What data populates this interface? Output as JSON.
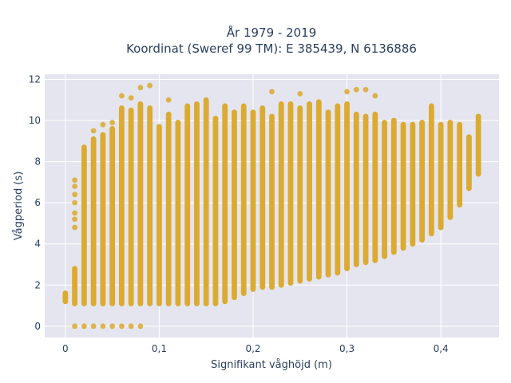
{
  "chart_data": {
    "type": "scatter",
    "title": "År 1979 - 2019",
    "subtitle": "Koordinat (Sweref 99 TM): E 385439, N 6136886",
    "xlabel": "Signifikant våghöjd (m)",
    "ylabel": "Vågperiod (s)",
    "xlim": [
      -0.022,
      0.462
    ],
    "ylim": [
      -0.55,
      12.25
    ],
    "x_ticks": [
      0,
      0.1,
      0.2,
      0.3,
      0.4
    ],
    "x_tick_labels": [
      "0",
      "0,1",
      "0,2",
      "0,3",
      "0,4"
    ],
    "y_ticks": [
      0,
      2,
      4,
      6,
      8,
      10,
      12
    ],
    "y_tick_labels": [
      "0",
      "2",
      "4",
      "6",
      "8",
      "10",
      "12"
    ],
    "grid": true,
    "legend": "none",
    "marker_color": "#DAA520",
    "plot_bg": "#E5E5EF",
    "x_step": 0.01,
    "columns": [
      {
        "x": 0.0,
        "ymin": 1.2,
        "ymax": 1.6,
        "extra": []
      },
      {
        "x": 0.01,
        "ymin": 1.1,
        "ymax": 2.8,
        "extra": [
          0,
          4.8,
          5.2,
          5.5,
          6.0,
          6.4,
          6.8,
          7.1
        ]
      },
      {
        "x": 0.02,
        "ymin": 1.1,
        "ymax": 8.7,
        "extra": [
          0
        ]
      },
      {
        "x": 0.03,
        "ymin": 1.1,
        "ymax": 9.1,
        "extra": [
          0,
          9.5
        ]
      },
      {
        "x": 0.04,
        "ymin": 1.1,
        "ymax": 9.3,
        "extra": [
          0,
          9.8
        ]
      },
      {
        "x": 0.05,
        "ymin": 1.1,
        "ymax": 9.6,
        "extra": [
          0,
          9.9
        ]
      },
      {
        "x": 0.06,
        "ymin": 1.1,
        "ymax": 10.6,
        "extra": [
          0,
          11.2
        ]
      },
      {
        "x": 0.07,
        "ymin": 1.1,
        "ymax": 10.5,
        "extra": [
          0,
          11.1
        ]
      },
      {
        "x": 0.08,
        "ymin": 1.1,
        "ymax": 10.8,
        "extra": [
          0,
          11.6
        ]
      },
      {
        "x": 0.09,
        "ymin": 1.1,
        "ymax": 10.6,
        "extra": [
          11.7
        ]
      },
      {
        "x": 0.1,
        "ymin": 1.1,
        "ymax": 9.7,
        "extra": []
      },
      {
        "x": 0.11,
        "ymin": 1.1,
        "ymax": 10.3,
        "extra": [
          11.0
        ]
      },
      {
        "x": 0.12,
        "ymin": 1.1,
        "ymax": 9.9,
        "extra": []
      },
      {
        "x": 0.13,
        "ymin": 1.1,
        "ymax": 10.7,
        "extra": []
      },
      {
        "x": 0.14,
        "ymin": 1.1,
        "ymax": 10.8,
        "extra": []
      },
      {
        "x": 0.15,
        "ymin": 1.1,
        "ymax": 11.0,
        "extra": []
      },
      {
        "x": 0.16,
        "ymin": 1.1,
        "ymax": 10.1,
        "extra": []
      },
      {
        "x": 0.17,
        "ymin": 1.2,
        "ymax": 10.7,
        "extra": []
      },
      {
        "x": 0.18,
        "ymin": 1.4,
        "ymax": 10.4,
        "extra": []
      },
      {
        "x": 0.19,
        "ymin": 1.6,
        "ymax": 10.7,
        "extra": []
      },
      {
        "x": 0.2,
        "ymin": 1.8,
        "ymax": 10.4,
        "extra": []
      },
      {
        "x": 0.21,
        "ymin": 1.9,
        "ymax": 10.6,
        "extra": []
      },
      {
        "x": 0.22,
        "ymin": 1.9,
        "ymax": 10.2,
        "extra": [
          11.4
        ]
      },
      {
        "x": 0.23,
        "ymin": 2.0,
        "ymax": 10.8,
        "extra": []
      },
      {
        "x": 0.24,
        "ymin": 2.1,
        "ymax": 10.8,
        "extra": []
      },
      {
        "x": 0.25,
        "ymin": 2.2,
        "ymax": 10.6,
        "extra": [
          11.3
        ]
      },
      {
        "x": 0.26,
        "ymin": 2.3,
        "ymax": 10.8,
        "extra": []
      },
      {
        "x": 0.27,
        "ymin": 2.4,
        "ymax": 10.9,
        "extra": []
      },
      {
        "x": 0.28,
        "ymin": 2.5,
        "ymax": 10.4,
        "extra": []
      },
      {
        "x": 0.29,
        "ymin": 2.6,
        "ymax": 10.7,
        "extra": []
      },
      {
        "x": 0.3,
        "ymin": 2.8,
        "ymax": 10.8,
        "extra": [
          11.4
        ]
      },
      {
        "x": 0.31,
        "ymin": 3.0,
        "ymax": 10.3,
        "extra": [
          11.5
        ]
      },
      {
        "x": 0.32,
        "ymin": 3.1,
        "ymax": 10.2,
        "extra": [
          11.5
        ]
      },
      {
        "x": 0.33,
        "ymin": 3.2,
        "ymax": 10.3,
        "extra": [
          11.2
        ]
      },
      {
        "x": 0.34,
        "ymin": 3.4,
        "ymax": 9.9,
        "extra": []
      },
      {
        "x": 0.35,
        "ymin": 3.6,
        "ymax": 10.0,
        "extra": []
      },
      {
        "x": 0.36,
        "ymin": 3.8,
        "ymax": 9.8,
        "extra": []
      },
      {
        "x": 0.37,
        "ymin": 4.0,
        "ymax": 9.8,
        "extra": []
      },
      {
        "x": 0.38,
        "ymin": 4.2,
        "ymax": 9.9,
        "extra": []
      },
      {
        "x": 0.39,
        "ymin": 4.5,
        "ymax": 10.7,
        "extra": []
      },
      {
        "x": 0.4,
        "ymin": 4.8,
        "ymax": 9.8,
        "extra": []
      },
      {
        "x": 0.41,
        "ymin": 5.3,
        "ymax": 9.9,
        "extra": []
      },
      {
        "x": 0.42,
        "ymin": 5.9,
        "ymax": 9.8,
        "extra": []
      },
      {
        "x": 0.43,
        "ymin": 6.7,
        "ymax": 9.2,
        "extra": []
      },
      {
        "x": 0.44,
        "ymin": 7.4,
        "ymax": 10.2,
        "extra": []
      }
    ]
  }
}
